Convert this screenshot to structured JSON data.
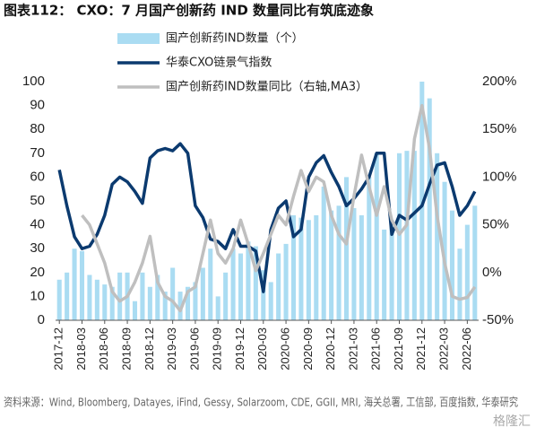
{
  "chart_data": {
    "type": "combo",
    "title": "图表112： CXO：7 月国产创新药 IND 数量同比有筑底迹象",
    "source": "资料来源：Wind, Bloomberg, Datayes, iFind, Gessy, Solarzoom, CDE, GGII, MRI, 海关总署, 工信部, 百度指数, 华泰研究",
    "watermark": "格隆汇",
    "categories": [
      "2017-12",
      null,
      null,
      "2018-03",
      null,
      null,
      "2018-06",
      null,
      null,
      "2018-09",
      null,
      null,
      "2018-12",
      null,
      null,
      "2019-03",
      null,
      null,
      "2019-06",
      null,
      null,
      "2019-09",
      null,
      null,
      "2019-12",
      null,
      null,
      "2020-03",
      null,
      null,
      "2020-06",
      null,
      null,
      "2020-09",
      null,
      null,
      "2020-12",
      null,
      null,
      "2021-03",
      null,
      null,
      "2021-06",
      null,
      null,
      "2021-09",
      null,
      null,
      "2021-12",
      null,
      null,
      "2022-03",
      null,
      null,
      "2022-06",
      null
    ],
    "ylim": [
      0,
      100
    ],
    "yticks": [
      0,
      10,
      20,
      30,
      40,
      50,
      60,
      70,
      80,
      90,
      100
    ],
    "y2lim": [
      -50,
      200
    ],
    "y2ticks": [
      {
        "value": -50,
        "label": "-50%"
      },
      {
        "value": 0,
        "label": "0%"
      },
      {
        "value": 50,
        "label": "50%"
      },
      {
        "value": 100,
        "label": "100%"
      },
      {
        "value": 150,
        "label": "150%"
      },
      {
        "value": 200,
        "label": "200%"
      }
    ],
    "legend": "top-center",
    "series": [
      {
        "name": "国产创新药IND数量（个）",
        "type": "bar",
        "color": "#aadcf2",
        "values": [
          17,
          20,
          30,
          29,
          19,
          17,
          15,
          14,
          20,
          20,
          8,
          20,
          14,
          19,
          12,
          22,
          12,
          14,
          16,
          22,
          30,
          10,
          20,
          30,
          28,
          33,
          31,
          21,
          16,
          28,
          32,
          44,
          43,
          42,
          44,
          56,
          46,
          48,
          60,
          47,
          44,
          60,
          70,
          38,
          42,
          70,
          71,
          71,
          100,
          93,
          70,
          58,
          46,
          30,
          40,
          48
        ]
      },
      {
        "name": "华泰CXO链景气指数",
        "type": "line",
        "color": "#0b3a6f",
        "width": 3.5,
        "values": [
          63,
          48,
          35,
          30,
          31,
          36,
          44,
          57,
          60,
          58,
          54,
          49,
          68,
          71,
          72,
          71,
          74,
          70,
          48,
          43,
          34,
          33,
          30,
          38,
          31,
          31,
          29,
          12,
          38,
          47,
          50,
          35,
          38,
          60,
          66,
          69,
          62,
          56,
          48,
          51,
          55,
          60,
          70,
          70,
          36,
          44,
          42,
          45,
          48,
          57,
          65,
          66,
          56,
          44,
          48,
          54
        ]
      },
      {
        "name": "国产创新药IND数量同比（右轴,MA3）",
        "type": "line",
        "axis": "y2",
        "color": "#bfbfbf",
        "width": 3.5,
        "values": [
          null,
          null,
          null,
          60,
          50,
          30,
          10,
          -20,
          -30,
          -25,
          -10,
          10,
          38,
          -10,
          -25,
          -30,
          -40,
          -20,
          -15,
          20,
          55,
          20,
          10,
          25,
          55,
          30,
          2,
          20,
          40,
          60,
          50,
          80,
          107,
          85,
          100,
          95,
          60,
          40,
          30,
          80,
          123,
          90,
          60,
          90,
          55,
          40,
          50,
          140,
          175,
          130,
          60,
          10,
          -25,
          -28,
          -26,
          -15
        ]
      }
    ]
  }
}
